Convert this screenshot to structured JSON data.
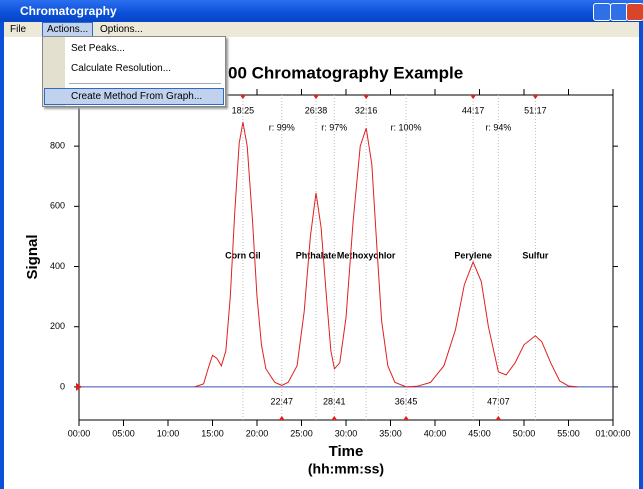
{
  "window": {
    "title": "Chromatography"
  },
  "menu": [
    "File",
    "Actions...",
    "Options..."
  ],
  "dropdown": [
    "Set Peaks...",
    "Calculate Resolution...",
    "Create Method From Graph..."
  ],
  "chart_data": {
    "type": "line",
    "title": "00 Chromatography Example",
    "x_label": "Time",
    "x_label_sub": "(hh:mm:ss)",
    "y_label": "Signal",
    "xlim": [
      0,
      60
    ],
    "ylim": [
      -110,
      970
    ],
    "xticks": [
      {
        "value": 0,
        "label": "00:00"
      },
      {
        "value": 5,
        "label": "05:00"
      },
      {
        "value": 10,
        "label": "10:00"
      },
      {
        "value": 15,
        "label": "15:00"
      },
      {
        "value": 20,
        "label": "20:00"
      },
      {
        "value": 25,
        "label": "25:00"
      },
      {
        "value": 30,
        "label": "30:00"
      },
      {
        "value": 35,
        "label": "35:00"
      },
      {
        "value": 40,
        "label": "40:00"
      },
      {
        "value": 45,
        "label": "45:00"
      },
      {
        "value": 50,
        "label": "50:00"
      },
      {
        "value": 55,
        "label": "55:00"
      },
      {
        "value": 60,
        "label": "01:00:00"
      }
    ],
    "yticks": [
      0,
      200,
      400,
      600,
      800
    ],
    "baseline_color": "#3b4fb5",
    "x": [
      13,
      14,
      14.5,
      15,
      15.5,
      16,
      16.5,
      17,
      17.5,
      18,
      18.42,
      18.9,
      19.5,
      20,
      20.5,
      21,
      22,
      22.78,
      23.5,
      24.5,
      25.3,
      26,
      26.63,
      27.2,
      27.8,
      28.3,
      28.7,
      29.3,
      30,
      30.8,
      31.6,
      32.27,
      32.9,
      33.5,
      34,
      34.7,
      35.5,
      36.75,
      38,
      39.5,
      41,
      42.3,
      43.3,
      44.28,
      45.2,
      46,
      47.12,
      48,
      49,
      50,
      51.28,
      52,
      53,
      54,
      55,
      56
    ],
    "series": [
      {
        "color": "#e02020",
        "values": [
          0,
          10,
          60,
          105,
          95,
          70,
          120,
          300,
          580,
          810,
          880,
          800,
          550,
          300,
          140,
          60,
          15,
          5,
          15,
          70,
          250,
          500,
          645,
          530,
          300,
          120,
          60,
          80,
          230,
          550,
          800,
          860,
          740,
          450,
          220,
          70,
          15,
          0,
          2,
          15,
          70,
          190,
          340,
          415,
          350,
          200,
          50,
          40,
          80,
          140,
          170,
          150,
          80,
          20,
          3,
          0
        ]
      }
    ],
    "peaks": [
      {
        "label": "Corn Oil",
        "time": 18.4167,
        "time_label": "18:25"
      },
      {
        "label": "Phthalate",
        "time": 26.6333,
        "time_label": "26:38"
      },
      {
        "label": "Methoxychlor",
        "time": 32.2667,
        "time_label": "32:16"
      },
      {
        "label": "Perylene",
        "time": 44.2833,
        "time_label": "44:17"
      },
      {
        "label": "Sulfur",
        "time": 51.2833,
        "time_label": "51:17"
      }
    ],
    "troughs": [
      {
        "time": 22.7833,
        "time_label": "22:47",
        "resolution_label": "r: 99%"
      },
      {
        "time": 28.6833,
        "time_label": "28:41",
        "resolution_label": "r: 97%"
      },
      {
        "time": 36.75,
        "time_label": "36:45",
        "resolution_label": "r: 100%"
      },
      {
        "time": 47.1167,
        "time_label": "47:07",
        "resolution_label": "r: 94%"
      }
    ]
  }
}
